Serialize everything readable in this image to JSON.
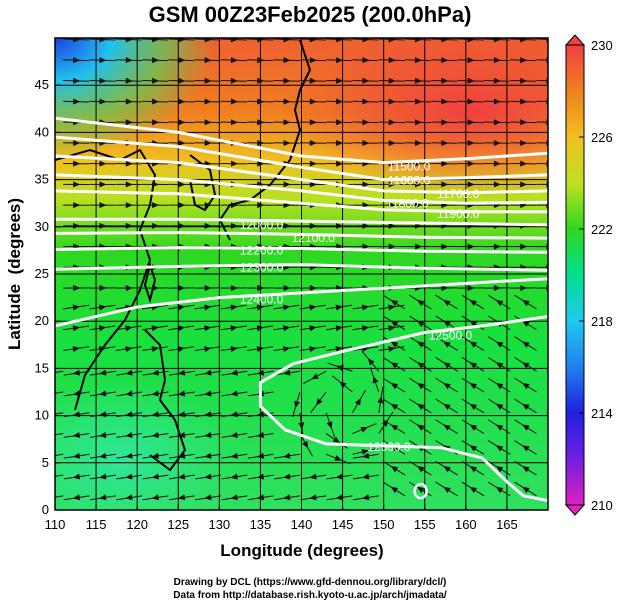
{
  "title": "GSM 00Z23Feb2025 (200.0hPa)",
  "footer": {
    "line1": "Drawing by DCL (https://www.gfd-dennou.org/library/dcl/)",
    "line2": "Data from http://database.rish.kyoto-u.ac.jp/arch/jmadata/"
  },
  "chart_data": {
    "type": "map",
    "xlabel": "Longitude (degrees)",
    "ylabel": "Latitude  (degrees)",
    "xlim": [
      110,
      170
    ],
    "ylim": [
      0,
      50
    ],
    "xticks": [
      "110",
      "115",
      "120",
      "125",
      "130",
      "135",
      "140",
      "145",
      "150",
      "155",
      "160",
      "165"
    ],
    "yticks": [
      "0",
      "5",
      "10",
      "15",
      "20",
      "25",
      "30",
      "35",
      "40",
      "45"
    ],
    "grid": true,
    "colorbar": {
      "range": [
        210,
        230
      ],
      "ticks": [
        "230",
        "226",
        "222",
        "218",
        "214",
        "210"
      ],
      "colors": [
        "#e020c0",
        "#7020e0",
        "#2020e0",
        "#2080f0",
        "#20c8f0",
        "#00e090",
        "#30d820",
        "#c0e020",
        "#f0c020",
        "#f08020",
        "#f04040"
      ]
    },
    "contours": [
      {
        "label": "11500.0",
        "points": [
          [
            110,
            41.5
          ],
          [
            125,
            40
          ],
          [
            140,
            37.5
          ],
          [
            150,
            36.8
          ],
          [
            160,
            37.2
          ],
          [
            170,
            37.8
          ]
        ],
        "label_at": [
          150.5,
          36.5
        ]
      },
      {
        "label": "11600.0",
        "points": [
          [
            110,
            39.5
          ],
          [
            125,
            38.5
          ],
          [
            140,
            36.3
          ],
          [
            150,
            35
          ],
          [
            160,
            35.2
          ],
          [
            170,
            35.5
          ]
        ],
        "label_at": [
          150.5,
          35
        ]
      },
      {
        "label": "11700.0",
        "points": [
          [
            110,
            37.5
          ],
          [
            125,
            36.8
          ],
          [
            140,
            35
          ],
          [
            150,
            33.8
          ],
          [
            160,
            33.6
          ],
          [
            170,
            33.8
          ]
        ],
        "label_at": [
          150.3,
          33.7
        ]
      },
      {
        "label": "11800.0",
        "points": [
          [
            110,
            35.5
          ],
          [
            125,
            35
          ],
          [
            140,
            33.8
          ],
          [
            150,
            32.8
          ],
          [
            160,
            32.5
          ],
          [
            170,
            32.6
          ]
        ],
        "label_at": [
          150.3,
          32.6
        ]
      },
      {
        "label": "11900.0",
        "points": [
          [
            110,
            33.8
          ],
          [
            125,
            33.5
          ],
          [
            140,
            32.5
          ],
          [
            150,
            31.8
          ],
          [
            160,
            31.6
          ],
          [
            170,
            31.6
          ]
        ],
        "label_at": [
          150.3,
          31.6
        ]
      },
      {
        "label": "12000.0",
        "points": [
          [
            110,
            30.8
          ],
          [
            125,
            30.8
          ],
          [
            140,
            30.6
          ],
          [
            155,
            30.4
          ],
          [
            170,
            30.2
          ]
        ],
        "label_at": [
          132.5,
          30.3
        ]
      },
      {
        "label": "12100.0",
        "points": [
          [
            110,
            29.3
          ],
          [
            125,
            29.4
          ],
          [
            140,
            29.2
          ],
          [
            155,
            28.9
          ],
          [
            170,
            28.8
          ]
        ],
        "label_at": [
          132.5,
          29
        ]
      },
      {
        "label": "12200.0",
        "points": [
          [
            110,
            27.6
          ],
          [
            125,
            27.8
          ],
          [
            140,
            27.7
          ],
          [
            155,
            27.4
          ],
          [
            170,
            27.3
          ]
        ],
        "label_at": [
          132.5,
          27.6
        ]
      },
      {
        "label": "12300.0",
        "points": [
          [
            110,
            25.5
          ],
          [
            125,
            25.8
          ],
          [
            140,
            26
          ],
          [
            155,
            25.6
          ],
          [
            170,
            25.4
          ]
        ],
        "label_at": [
          132.5,
          25.8
        ]
      },
      {
        "label": "12400.0",
        "points": [
          [
            110,
            19.5
          ],
          [
            120,
            21.5
          ],
          [
            130,
            22.5
          ],
          [
            140,
            23
          ],
          [
            150,
            23.5
          ],
          [
            160,
            24
          ],
          [
            170,
            24.5
          ]
        ],
        "label_at": [
          132.5,
          22.4
        ]
      },
      {
        "label": "12500.0",
        "points": [
          [
            145,
            16.8
          ],
          [
            150,
            17.8
          ],
          [
            155,
            18.8
          ],
          [
            162,
            19.5
          ],
          [
            170,
            20.5
          ]
        ],
        "label_at": [
          155.5,
          18.6
        ]
      },
      {
        "label": "12500.0",
        "points": [
          [
            145,
            16.8
          ],
          [
            139,
            15.5
          ],
          [
            135,
            13.5
          ],
          [
            135,
            11
          ],
          [
            138,
            8.5
          ],
          [
            143,
            7
          ],
          [
            150,
            6.8
          ],
          [
            157,
            6.6
          ],
          [
            162,
            5.5
          ],
          [
            165,
            3
          ],
          [
            167,
            1.5
          ],
          [
            170,
            1
          ]
        ],
        "label_at": [
          148,
          6.8
        ]
      }
    ]
  }
}
